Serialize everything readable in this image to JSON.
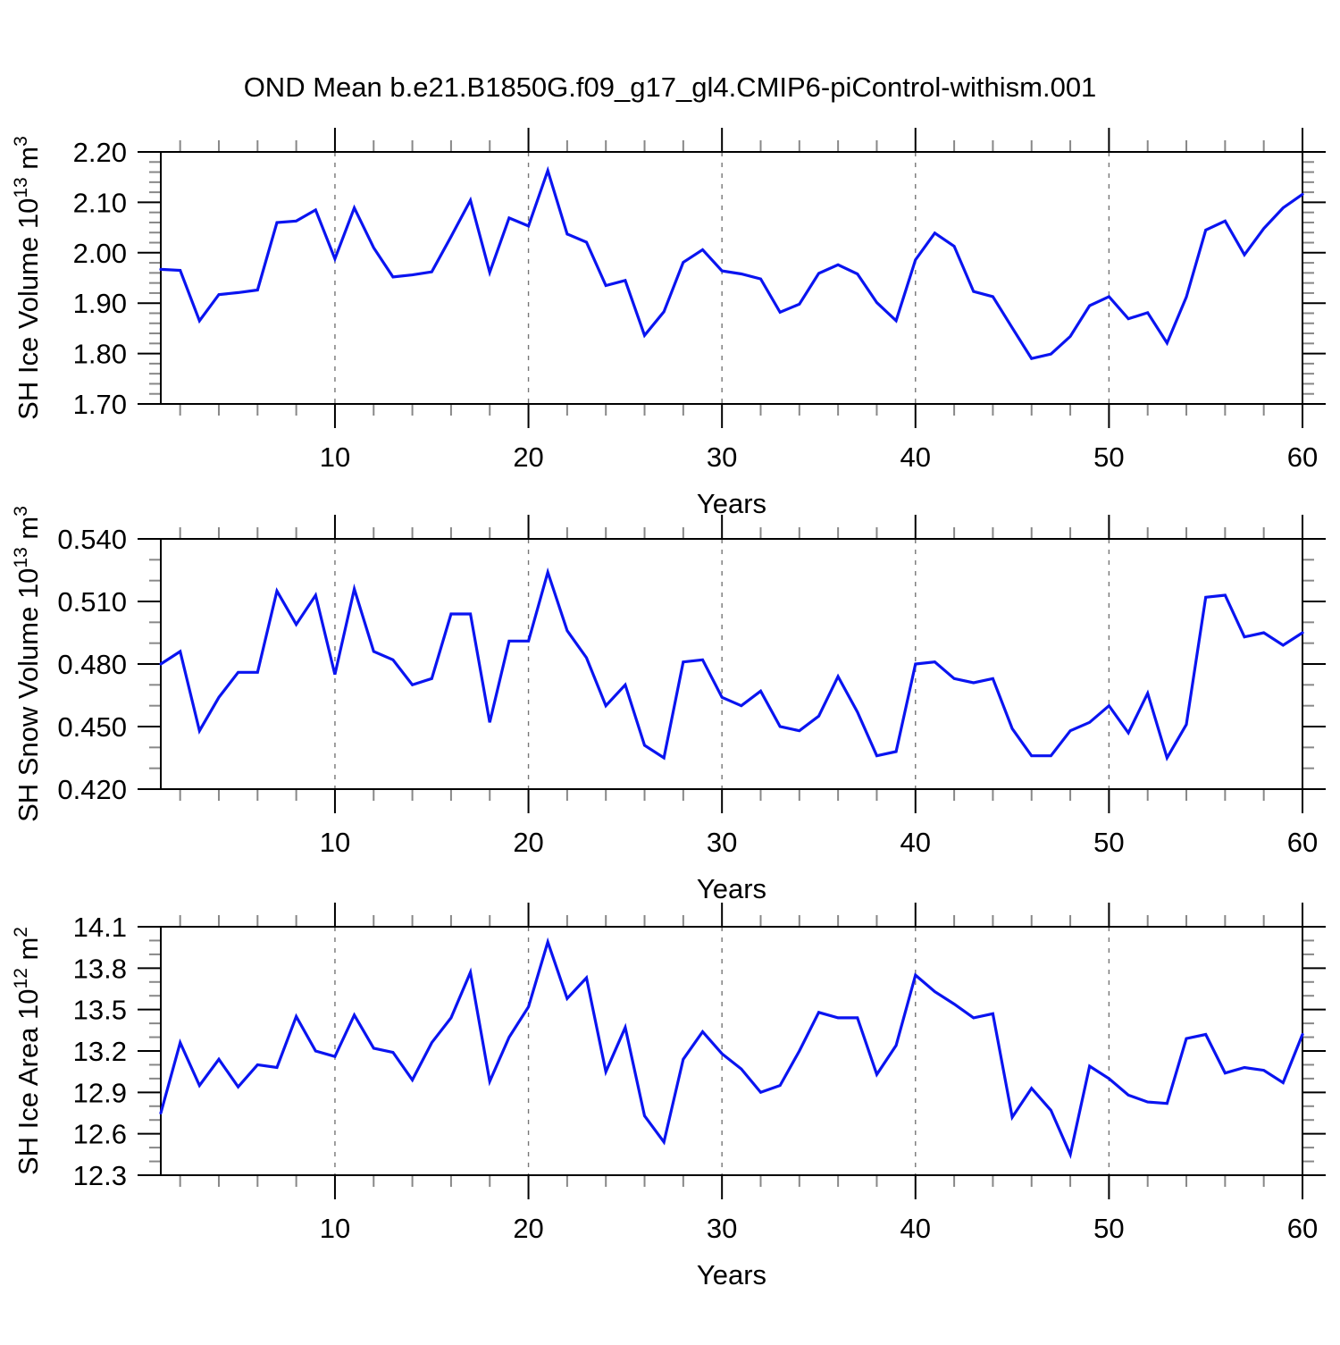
{
  "title": "OND Mean b.e21.B1850G.f09_g17_gl4.CMIP6-piControl-withism.001",
  "line_color": "#0a14f0",
  "grid_color": "#777777",
  "minor_tick_color": "#888888",
  "x_axis": {
    "label": "Years",
    "min": 1,
    "max": 60,
    "major_ticks": [
      10,
      20,
      30,
      40,
      50,
      60
    ],
    "minor_step": 2,
    "gridlines": [
      10,
      20,
      30,
      40,
      50
    ]
  },
  "chart_data": [
    {
      "type": "line",
      "name": "sh-ice-volume",
      "ylabel_text": "SH Ice Volume 10^13 m^3",
      "ylabel_parts": {
        "base": "SH Ice Volume 10",
        "sup": "13",
        "mid": " m",
        "sup2": "3"
      },
      "ylim": [
        1.7,
        2.2
      ],
      "ytick_step": 0.1,
      "yminor_step": 0.02,
      "ytick_decimals": 2,
      "xlabel": "Years",
      "grid": "vertical-dashed",
      "legend": "none",
      "x": [
        1,
        2,
        3,
        4,
        5,
        6,
        7,
        8,
        9,
        10,
        11,
        12,
        13,
        14,
        15,
        16,
        17,
        18,
        19,
        20,
        21,
        22,
        23,
        24,
        25,
        26,
        27,
        28,
        29,
        30,
        31,
        32,
        33,
        34,
        35,
        36,
        37,
        38,
        39,
        40,
        41,
        42,
        43,
        44,
        45,
        46,
        47,
        48,
        49,
        50,
        51,
        52,
        53,
        54,
        55,
        56,
        57,
        58,
        59,
        60
      ],
      "values": [
        1.967,
        1.965,
        1.865,
        1.917,
        1.921,
        1.926,
        2.06,
        2.063,
        2.085,
        1.988,
        2.089,
        2.01,
        1.952,
        1.956,
        1.962,
        2.032,
        2.104,
        1.961,
        2.069,
        2.053,
        2.163,
        2.037,
        2.021,
        1.935,
        1.945,
        1.836,
        1.883,
        1.981,
        2.006,
        1.964,
        1.958,
        1.948,
        1.882,
        1.898,
        1.959,
        1.976,
        1.958,
        1.901,
        1.865,
        1.986,
        2.039,
        2.013,
        1.923,
        1.913,
        1.851,
        1.79,
        1.799,
        1.834,
        1.895,
        1.913,
        1.869,
        1.881,
        1.821,
        1.912,
        2.045,
        2.063,
        1.996,
        2.048,
        2.089,
        2.116
      ]
    },
    {
      "type": "line",
      "name": "sh-snow-volume",
      "ylabel_text": "SH Snow Volume 10^13 m^3",
      "ylabel_parts": {
        "base": "SH Snow Volume 10",
        "sup": "13",
        "mid": " m",
        "sup2": "3"
      },
      "ylim": [
        0.42,
        0.54
      ],
      "ytick_step": 0.03,
      "yminor_step": 0.01,
      "ytick_decimals": 3,
      "xlabel": "Years",
      "grid": "vertical-dashed",
      "legend": "none",
      "x": [
        1,
        2,
        3,
        4,
        5,
        6,
        7,
        8,
        9,
        10,
        11,
        12,
        13,
        14,
        15,
        16,
        17,
        18,
        19,
        20,
        21,
        22,
        23,
        24,
        25,
        26,
        27,
        28,
        29,
        30,
        31,
        32,
        33,
        34,
        35,
        36,
        37,
        38,
        39,
        40,
        41,
        42,
        43,
        44,
        45,
        46,
        47,
        48,
        49,
        50,
        51,
        52,
        53,
        54,
        55,
        56,
        57,
        58,
        59,
        60
      ],
      "values": [
        0.48,
        0.486,
        0.448,
        0.464,
        0.476,
        0.476,
        0.515,
        0.499,
        0.513,
        0.475,
        0.516,
        0.486,
        0.482,
        0.47,
        0.473,
        0.504,
        0.504,
        0.452,
        0.491,
        0.491,
        0.524,
        0.496,
        0.483,
        0.46,
        0.47,
        0.441,
        0.435,
        0.481,
        0.482,
        0.464,
        0.46,
        0.467,
        0.45,
        0.448,
        0.455,
        0.474,
        0.457,
        0.436,
        0.438,
        0.48,
        0.481,
        0.473,
        0.471,
        0.473,
        0.449,
        0.436,
        0.436,
        0.448,
        0.452,
        0.46,
        0.447,
        0.466,
        0.435,
        0.451,
        0.512,
        0.513,
        0.493,
        0.495,
        0.489,
        0.495
      ]
    },
    {
      "type": "line",
      "name": "sh-ice-area",
      "ylabel_text": "SH Ice Area 10^12 m^2",
      "ylabel_parts": {
        "base": "SH Ice Area 10",
        "sup": "12",
        "mid": " m",
        "sup2": "2"
      },
      "ylim": [
        12.3,
        14.1
      ],
      "ytick_step": 0.3,
      "yminor_step": 0.1,
      "ytick_decimals": 1,
      "xlabel": "Years",
      "grid": "vertical-dashed",
      "legend": "none",
      "x": [
        1,
        2,
        3,
        4,
        5,
        6,
        7,
        8,
        9,
        10,
        11,
        12,
        13,
        14,
        15,
        16,
        17,
        18,
        19,
        20,
        21,
        22,
        23,
        24,
        25,
        26,
        27,
        28,
        29,
        30,
        31,
        32,
        33,
        34,
        35,
        36,
        37,
        38,
        39,
        40,
        41,
        42,
        43,
        44,
        45,
        46,
        47,
        48,
        49,
        50,
        51,
        52,
        53,
        54,
        55,
        56,
        57,
        58,
        59,
        60
      ],
      "values": [
        12.75,
        13.26,
        12.95,
        13.14,
        12.94,
        13.1,
        13.08,
        13.45,
        13.2,
        13.16,
        13.46,
        13.22,
        13.19,
        12.99,
        13.26,
        13.44,
        13.77,
        12.98,
        13.3,
        13.52,
        13.99,
        13.58,
        13.73,
        13.05,
        13.37,
        12.73,
        12.54,
        13.14,
        13.34,
        13.18,
        13.07,
        12.9,
        12.95,
        13.2,
        13.48,
        13.44,
        13.44,
        13.03,
        13.24,
        13.75,
        13.63,
        13.54,
        13.44,
        13.47,
        12.72,
        12.93,
        12.77,
        12.45,
        13.09,
        13.0,
        12.88,
        12.83,
        12.82,
        13.29,
        13.32,
        13.04,
        13.08,
        13.06,
        12.97,
        13.32
      ]
    }
  ]
}
